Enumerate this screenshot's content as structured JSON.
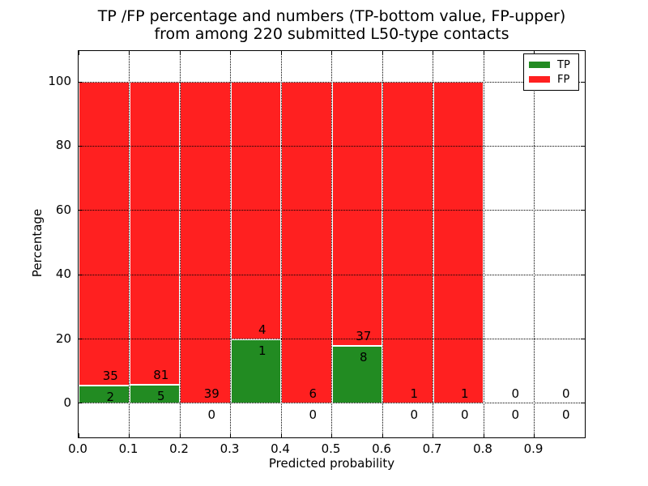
{
  "title": {
    "line1": "TP /FP percentage and numbers (TP-bottom value, FP-upper)",
    "line2": "from among 220 submitted L50-type contacts"
  },
  "axes": {
    "xlabel": "Predicted probability",
    "ylabel": "Percentage"
  },
  "legend": {
    "items": [
      {
        "label": "TP",
        "color": "#228b22"
      },
      {
        "label": "FP",
        "color": "#ff2020"
      }
    ]
  },
  "colors": {
    "tp": "#228b22",
    "fp": "#ff2020",
    "grid": "#000000",
    "frame": "#000000",
    "bar_edge": "#ffffff",
    "background": "#ffffff"
  },
  "chart_data": {
    "type": "bar",
    "stacked": true,
    "units": "percent",
    "title": "TP /FP percentage and numbers (TP-bottom value, FP-upper) from among 220 submitted L50-type contacts",
    "xlabel": "Predicted probability",
    "ylabel": "Percentage",
    "x_tick_labels": [
      "0.0",
      "0.1",
      "0.2",
      "0.3",
      "0.4",
      "0.5",
      "0.6",
      "0.7",
      "0.8",
      "0.9"
    ],
    "y_tick_values": [
      0,
      20,
      40,
      60,
      80,
      100
    ],
    "xlim": [
      0.0,
      1.0
    ],
    "ylim": [
      -10.6,
      109.6
    ],
    "grid": true,
    "legend_position": "upper right",
    "series": [
      {
        "name": "TP",
        "color": "#228b22"
      },
      {
        "name": "FP",
        "color": "#ff2020"
      }
    ],
    "total_contacts": 220,
    "bins": [
      {
        "x0": 0.0,
        "x1": 0.1,
        "tp": 2,
        "fp": 35,
        "tp_pct": 5.41,
        "fp_pct": 94.59
      },
      {
        "x0": 0.1,
        "x1": 0.2,
        "tp": 5,
        "fp": 81,
        "tp_pct": 5.81,
        "fp_pct": 94.19
      },
      {
        "x0": 0.2,
        "x1": 0.3,
        "tp": 0,
        "fp": 39,
        "tp_pct": 0,
        "fp_pct": 100
      },
      {
        "x0": 0.3,
        "x1": 0.4,
        "tp": 1,
        "fp": 4,
        "tp_pct": 20,
        "fp_pct": 80
      },
      {
        "x0": 0.4,
        "x1": 0.5,
        "tp": 0,
        "fp": 6,
        "tp_pct": 0,
        "fp_pct": 100
      },
      {
        "x0": 0.5,
        "x1": 0.6,
        "tp": 8,
        "fp": 37,
        "tp_pct": 17.78,
        "fp_pct": 82.22
      },
      {
        "x0": 0.6,
        "x1": 0.7,
        "tp": 0,
        "fp": 1,
        "tp_pct": 0,
        "fp_pct": 100
      },
      {
        "x0": 0.7,
        "x1": 0.8,
        "tp": 0,
        "fp": 1,
        "tp_pct": 0,
        "fp_pct": 100
      },
      {
        "x0": 0.8,
        "x1": 0.9,
        "tp": 0,
        "fp": 0,
        "tp_pct": 0,
        "fp_pct": 0
      },
      {
        "x0": 0.9,
        "x1": 1.0,
        "tp": 0,
        "fp": 0,
        "tp_pct": 0,
        "fp_pct": 0
      }
    ]
  }
}
